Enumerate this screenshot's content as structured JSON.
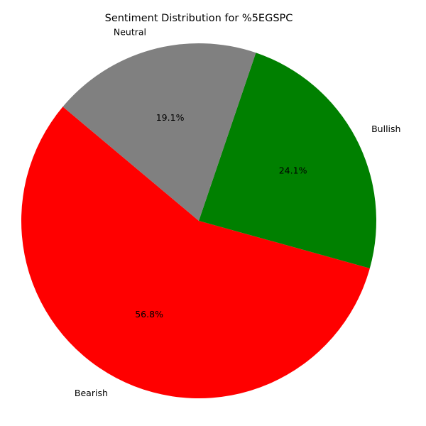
{
  "chart_data": {
    "type": "pie",
    "title": "Sentiment Distribution for %5EGSPC",
    "categories": [
      "Bearish",
      "Bullish",
      "Neutral"
    ],
    "values": [
      56.8,
      24.1,
      19.1
    ],
    "value_labels": [
      "56.8%",
      "24.1%",
      "19.1%"
    ],
    "colors": [
      "#ff0000",
      "#008000",
      "#808080"
    ],
    "start_angle_deg": 140,
    "direction": "counterclockwise",
    "legend": "none"
  }
}
